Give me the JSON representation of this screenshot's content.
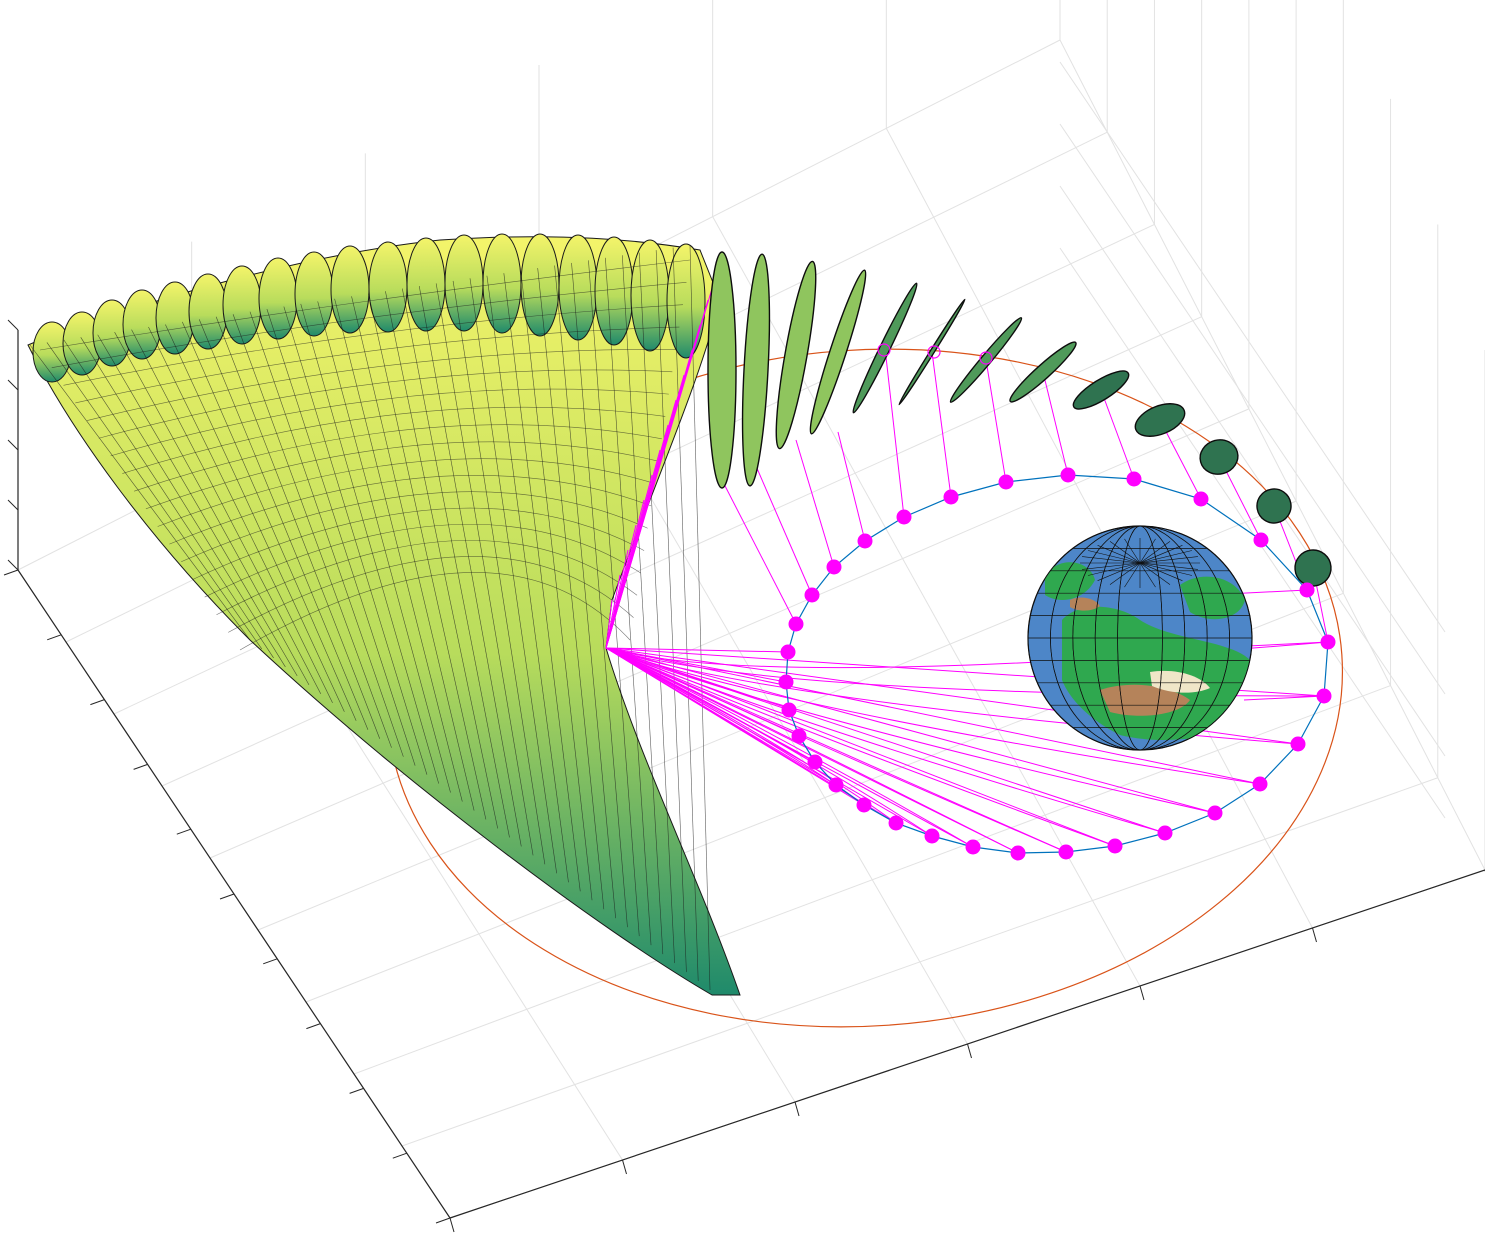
{
  "chart_data": {
    "type": "scatter",
    "plot_kind": "3d",
    "title": "",
    "xlabel": "",
    "ylabel": "",
    "zlabel": "",
    "grid": true,
    "tick_labels_visible": false,
    "legend": "none",
    "colors": {
      "orbit_outer": "#d95319",
      "orbit_inner": "#0072bd",
      "markers": "#ff00ff",
      "rays": "#ff00ff",
      "ellipsoid_low": "#1f8a6b",
      "ellipsoid_high": "#fde725",
      "ocean": "#4d86c8",
      "land": "#2fa84f",
      "desert": "#b5835a"
    },
    "series": [
      {
        "name": "",
        "kind": "outer orbit",
        "style": "line",
        "color": "#d95319"
      },
      {
        "name": "",
        "kind": "inner orbit",
        "style": "line with filled markers",
        "color": "#0072bd",
        "marker_color": "#ff00ff",
        "n_points": 36
      },
      {
        "name": "",
        "kind": "covariance ellipsoids",
        "style": "surface",
        "colormap": "summer/viridis",
        "n_ellipsoids": 36
      },
      {
        "name": "",
        "kind": "earth globe",
        "style": "textured sphere"
      }
    ]
  }
}
